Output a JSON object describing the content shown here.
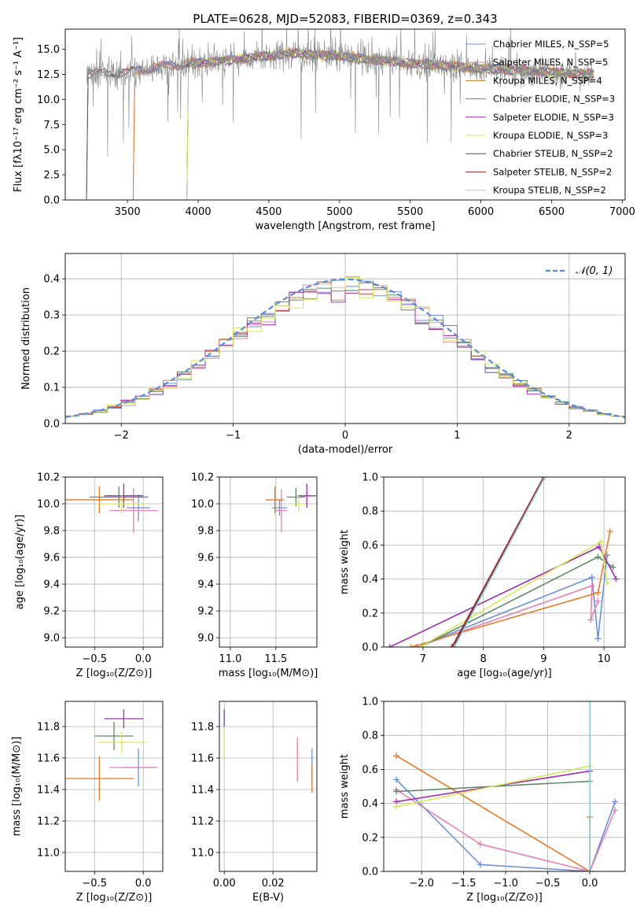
{
  "colors": [
    "#6b8fd8",
    "#e383b5",
    "#e07b2a",
    "#5e8a6a",
    "#9b2fae",
    "#d8e65a",
    "#555555",
    "#a0262a",
    "#8ecfd8"
  ],
  "chart_data": [
    {
      "id": "spectrum",
      "type": "line",
      "title": "PLATE=0628, MJD=52083, FIBERID=0369, z=0.343",
      "xlabel": "wavelength [Angstrom, rest frame]",
      "ylabel": "Flux [fλ10⁻¹⁷ erg cm⁻² s⁻¹ A⁻¹]",
      "xlim": [
        3060,
        7020
      ],
      "ylim": [
        0,
        17
      ],
      "xticks": [
        "3500",
        "4000",
        "4500",
        "5000",
        "5500",
        "6000",
        "6500",
        "7000"
      ],
      "yticks": [
        "0.0",
        "2.5",
        "5.0",
        "7.5",
        "10.0",
        "12.5",
        "15.0"
      ],
      "legend_position": "right",
      "series": [
        {
          "name": "Chabrier MILES, N_SSP=5",
          "start": 3540
        },
        {
          "name": "Salpeter MILES, N_SSP=5",
          "start": 3540
        },
        {
          "name": "Kroupa MILES, N_SSP=4",
          "start": 3540
        },
        {
          "name": "Chabrier ELODIE, N_SSP=3",
          "start": 3920
        },
        {
          "name": "Salpeter ELODIE, N_SSP=3",
          "start": 3920
        },
        {
          "name": "Kroupa ELODIE, N_SSP=3",
          "start": 3920
        },
        {
          "name": "Chabrier STELIB, N_SSP=2",
          "start": 3210
        },
        {
          "name": "Salpeter STELIB, N_SSP=2",
          "start": 3210
        },
        {
          "name": "Kroupa STELIB, N_SSP=2",
          "start": 3210
        }
      ],
      "continuum": [
        [
          3200,
          12.5
        ],
        [
          3500,
          12.7
        ],
        [
          3800,
          13.4
        ],
        [
          4200,
          13.9
        ],
        [
          4700,
          14.6
        ],
        [
          5000,
          14.3
        ],
        [
          5500,
          13.6
        ],
        [
          6000,
          13.1
        ],
        [
          6500,
          12.7
        ],
        [
          6800,
          12.5
        ]
      ]
    },
    {
      "id": "residuals",
      "type": "step",
      "xlabel": "(data-model)/error",
      "ylabel": "Normed distribution",
      "xlim": [
        -2.5,
        2.5
      ],
      "ylim": [
        0,
        0.47
      ],
      "xticks": [
        "−2",
        "−1",
        "0",
        "1",
        "2"
      ],
      "yticks": [
        "0.0",
        "0.1",
        "0.2",
        "0.3",
        "0.4"
      ],
      "legend_label": "𝒩(0, 1)",
      "bins": 40
    },
    {
      "id": "z-age",
      "type": "errorbar",
      "xlabel": "Z [log₁₀(Z/Z⊙)]",
      "ylabel": "age  [log₁₀(age/yr)]",
      "xlim": [
        -0.8,
        0.2
      ],
      "ylim": [
        8.93,
        10.2
      ],
      "xticks": [
        "−0.5",
        "0.0"
      ],
      "yticks": [
        "9.0",
        "9.2",
        "9.4",
        "9.6",
        "9.8",
        "10.0",
        "10.2"
      ],
      "points": [
        {
          "c": 0,
          "x": -0.05,
          "y": 9.97,
          "ex": 0.12,
          "ey": 0.1
        },
        {
          "c": 1,
          "x": -0.1,
          "y": 9.95,
          "ex": 0.25,
          "ey": 0.17
        },
        {
          "c": 2,
          "x": -0.45,
          "y": 10.03,
          "ex": 0.35,
          "ey": 0.1
        },
        {
          "c": 3,
          "x": -0.25,
          "y": 10.05,
          "ex": 0.3,
          "ey": 0.08
        },
        {
          "c": 4,
          "x": -0.2,
          "y": 10.06,
          "ex": 0.2,
          "ey": 0.09
        },
        {
          "c": 5,
          "x": -0.22,
          "y": 10.0,
          "ex": 0.25,
          "ey": 0.07
        }
      ]
    },
    {
      "id": "mass-age",
      "type": "errorbar",
      "xlabel": "mass [log₁₀(M/M⊙)]",
      "xlim": [
        10.88,
        11.95
      ],
      "ylim": [
        8.93,
        10.2
      ],
      "xticks": [
        "11.0",
        "11.5"
      ],
      "yticks": [
        "9.0",
        "9.2",
        "9.4",
        "9.6",
        "9.8",
        "10.0",
        "10.2"
      ],
      "points": [
        {
          "c": 0,
          "x": 11.54,
          "y": 9.97,
          "ex": 0.08,
          "ey": 0.06
        },
        {
          "c": 1,
          "x": 11.56,
          "y": 9.95,
          "ex": 0.06,
          "ey": 0.16
        },
        {
          "c": 2,
          "x": 11.49,
          "y": 10.03,
          "ex": 0.1,
          "ey": 0.1
        },
        {
          "c": 3,
          "x": 11.72,
          "y": 10.05,
          "ex": 0.1,
          "ey": 0.07
        },
        {
          "c": 4,
          "x": 11.84,
          "y": 10.06,
          "ex": 0.1,
          "ey": 0.09
        },
        {
          "c": 5,
          "x": 11.75,
          "y": 10.0,
          "ex": 0.08,
          "ey": 0.06
        }
      ]
    },
    {
      "id": "age-weight",
      "type": "line",
      "xlabel": "age  [log₁₀(age/yr)]",
      "ylabel": "mass weight",
      "xlim": [
        6.35,
        10.35
      ],
      "ylim": [
        0,
        1
      ],
      "xticks": [
        "7",
        "8",
        "9",
        "10"
      ],
      "yticks": [
        "0.0",
        "0.2",
        "0.4",
        "0.6",
        "0.8",
        "1.0"
      ],
      "series": [
        {
          "c": 0,
          "x": [
            6.9,
            9.8,
            9.9,
            10.05
          ],
          "y": [
            0.0,
            0.41,
            0.05,
            0.54
          ]
        },
        {
          "c": 1,
          "x": [
            6.9,
            9.8,
            9.78,
            9.9
          ],
          "y": [
            0.0,
            0.36,
            0.16,
            0.27
          ]
        },
        {
          "c": 2,
          "x": [
            6.8,
            9.9,
            10.1
          ],
          "y": [
            0.0,
            0.32,
            0.68
          ]
        },
        {
          "c": 3,
          "x": [
            6.95,
            9.9,
            10.15
          ],
          "y": [
            0.0,
            0.53,
            0.47
          ]
        },
        {
          "c": 4,
          "x": [
            6.45,
            9.92,
            10.2
          ],
          "y": [
            0.0,
            0.59,
            0.4
          ]
        },
        {
          "c": 5,
          "x": [
            6.95,
            9.95,
            10.05
          ],
          "y": [
            0.0,
            0.62,
            0.38
          ]
        },
        {
          "c": 6,
          "x": [
            7.5,
            9.0
          ],
          "y": [
            0.0,
            1.0
          ]
        },
        {
          "c": 7,
          "x": [
            7.48,
            9.0
          ],
          "y": [
            0.0,
            1.0
          ]
        },
        {
          "c": 8,
          "x": [
            7.52,
            9.02
          ],
          "y": [
            0.0,
            1.0
          ]
        }
      ]
    },
    {
      "id": "z-mass",
      "type": "errorbar",
      "xlabel": "Z [log₁₀(Z/Z⊙)]",
      "ylabel": "mass [log₁₀(M/M⊙)]",
      "xlim": [
        -0.8,
        0.2
      ],
      "ylim": [
        10.88,
        11.96
      ],
      "xticks": [
        "−0.5",
        "0.0"
      ],
      "yticks": [
        "11.0",
        "11.2",
        "11.4",
        "11.6",
        "11.8"
      ],
      "points": [
        {
          "c": 0,
          "x": -0.05,
          "y": 11.54,
          "ex": 0.15,
          "ey": 0.12
        },
        {
          "c": 1,
          "x": -0.1,
          "y": 11.54,
          "ex": 0.25,
          "ey": 0.0
        },
        {
          "c": 2,
          "x": -0.45,
          "y": 11.47,
          "ex": 0.35,
          "ey": 0.14
        },
        {
          "c": 3,
          "x": -0.3,
          "y": 11.74,
          "ex": 0.2,
          "ey": 0.09
        },
        {
          "c": 4,
          "x": -0.2,
          "y": 11.85,
          "ex": 0.2,
          "ey": 0.06
        },
        {
          "c": 5,
          "x": -0.22,
          "y": 11.7,
          "ex": 0.25,
          "ey": 0.07
        }
      ]
    },
    {
      "id": "ebv-mass",
      "type": "errorbar",
      "xlabel": "E(B-V)",
      "xlim": [
        -0.002,
        0.038
      ],
      "ylim": [
        10.88,
        11.96
      ],
      "xticks": [
        "0.00",
        "0.02"
      ],
      "yticks": [
        "11.0",
        "11.2",
        "11.4",
        "11.6",
        "11.8"
      ],
      "points": [
        {
          "c": 0,
          "x": 0.036,
          "y": 11.54,
          "ex": 0,
          "ey": 0.12
        },
        {
          "c": 1,
          "x": 0.03,
          "y": 11.59,
          "ex": 0,
          "ey": 0.14
        },
        {
          "c": 2,
          "x": 0.036,
          "y": 11.47,
          "ex": 0,
          "ey": 0.09
        },
        {
          "c": 4,
          "x": 0.0,
          "y": 11.85,
          "ex": 0,
          "ey": 0.06
        },
        {
          "c": 5,
          "x": 0.0,
          "y": 11.7,
          "ex": 0,
          "ey": 0.1
        }
      ]
    },
    {
      "id": "z-weight",
      "type": "line",
      "xlabel": "Z [log₁₀(Z/Z⊙)]",
      "ylabel": "mass weight",
      "xlim": [
        -2.45,
        0.42
      ],
      "ylim": [
        0,
        1
      ],
      "xticks": [
        "−2.0",
        "−1.5",
        "−1.0",
        "−0.5",
        "0.0"
      ],
      "yticks": [
        "0.0",
        "0.2",
        "0.4",
        "0.6",
        "0.8",
        "1.0"
      ],
      "series": [
        {
          "c": 0,
          "x": [
            -2.3,
            -1.3,
            0.0,
            0.3
          ],
          "y": [
            0.54,
            0.04,
            0.0,
            0.41
          ]
        },
        {
          "c": 1,
          "x": [
            -2.3,
            -1.3,
            0.0,
            0.3
          ],
          "y": [
            0.48,
            0.16,
            0.0,
            0.36
          ]
        },
        {
          "c": 2,
          "x": [
            -2.3,
            0.0,
            0.0
          ],
          "y": [
            0.68,
            0.0,
            0.32
          ]
        },
        {
          "c": 3,
          "x": [
            -2.3,
            0.0
          ],
          "y": [
            0.47,
            0.53
          ]
        },
        {
          "c": 4,
          "x": [
            -2.3,
            0.0
          ],
          "y": [
            0.41,
            0.59
          ]
        },
        {
          "c": 5,
          "x": [
            -2.3,
            0.0
          ],
          "y": [
            0.38,
            0.62
          ]
        },
        {
          "c": 8,
          "x": [
            0.0,
            0.0
          ],
          "y": [
            0.0,
            1.0
          ]
        }
      ]
    }
  ]
}
